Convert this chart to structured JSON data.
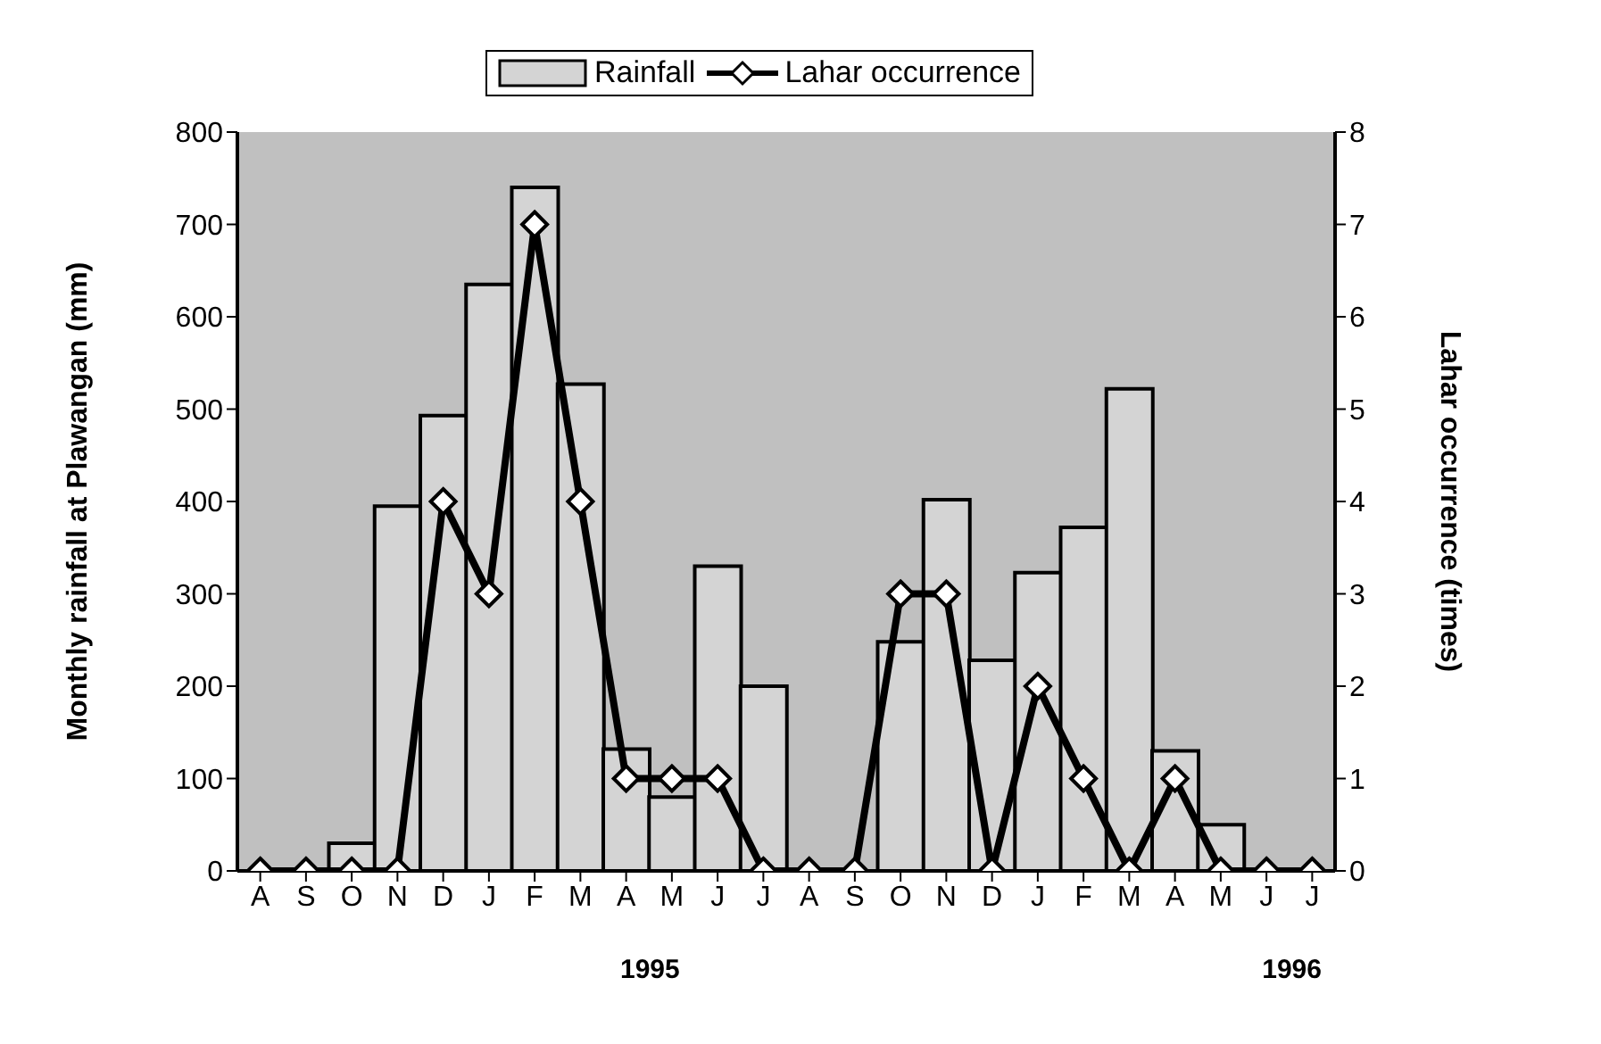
{
  "chart_data": {
    "type": "bar",
    "categories": [
      "A",
      "S",
      "O",
      "N",
      "D",
      "J",
      "F",
      "M",
      "A",
      "M",
      "J",
      "J",
      "A",
      "S",
      "O",
      "N",
      "D",
      "J",
      "F",
      "M",
      "A",
      "M",
      "J",
      "J"
    ],
    "series": [
      {
        "name": "Rainfall",
        "color": "#d4d4d4",
        "values": [
          0,
          0,
          30,
          395,
          493,
          635,
          740,
          527,
          132,
          80,
          330,
          200,
          0,
          0,
          248,
          402,
          228,
          323,
          372,
          522,
          130,
          50,
          0,
          0
        ]
      },
      {
        "name": "Lahar occurrence",
        "type": "line",
        "axis": "y2",
        "color": "#000000",
        "marker": "diamond",
        "values": [
          0,
          0,
          0,
          0,
          4,
          3,
          7,
          4,
          1,
          1,
          1,
          0,
          0,
          0,
          3,
          3,
          0,
          2,
          1,
          0,
          1,
          0,
          0,
          0
        ]
      }
    ],
    "ylabel": "Monthly rainfall at Plawangan (mm)",
    "y2label": "Lahar occurrence (times)",
    "ylim": [
      0,
      800
    ],
    "yticks": [
      0,
      100,
      200,
      300,
      400,
      500,
      600,
      700,
      800
    ],
    "y2lim": [
      0,
      8
    ],
    "y2ticks": [
      0,
      1,
      2,
      3,
      4,
      5,
      6,
      7,
      8
    ],
    "annotations": [
      "1995",
      "1996"
    ],
    "legend": "top",
    "grid": false
  }
}
